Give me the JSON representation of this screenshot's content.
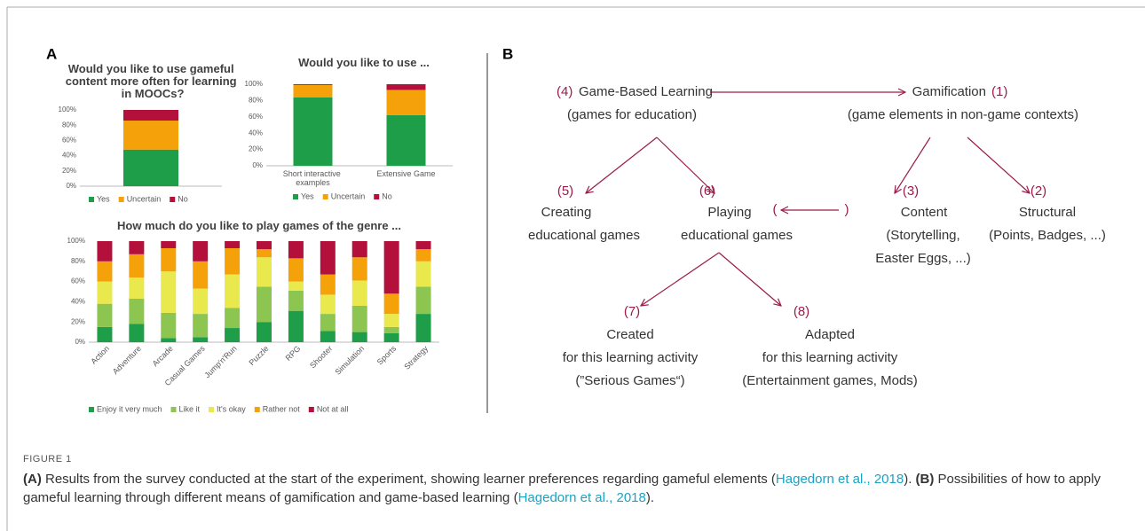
{
  "panel_labels": [
    "A",
    "B"
  ],
  "chart_data": [
    {
      "type": "stacked_bar",
      "title": "Would you like to use gameful content more often for learning in MOOCs?",
      "categories": [
        null
      ],
      "series": [
        {
          "name": "Yes",
          "color": "#1e9e48",
          "values": [
            48
          ]
        },
        {
          "name": "Uncertain",
          "color": "#f5a20a",
          "values": [
            38
          ]
        },
        {
          "name": "No",
          "color": "#b3103c",
          "values": [
            14
          ]
        }
      ],
      "ylim": [
        0,
        100
      ],
      "yticks": [
        {
          "value": 0,
          "label": "0%"
        },
        {
          "value": 20,
          "label": "20%"
        },
        {
          "value": 40,
          "label": "40%"
        },
        {
          "value": 60,
          "label": "60%"
        },
        {
          "value": 80,
          "label": "80%"
        },
        {
          "value": 100,
          "label": "100%"
        }
      ],
      "grid": false
    },
    {
      "type": "stacked_bar",
      "title": "Would you like to use ...",
      "categories": [
        "Short interactive examples",
        "Extensive Game"
      ],
      "series": [
        {
          "name": "Yes",
          "color": "#1e9e48",
          "values": [
            84,
            62
          ]
        },
        {
          "name": "Uncertain",
          "color": "#f5a20a",
          "values": [
            15,
            31
          ]
        },
        {
          "name": "No",
          "color": "#b3103c",
          "values": [
            1,
            7
          ]
        }
      ],
      "ylim": [
        0,
        100
      ],
      "yticks": [
        {
          "value": 0,
          "label": "0%"
        },
        {
          "value": 20,
          "label": "20%"
        },
        {
          "value": 40,
          "label": "40%"
        },
        {
          "value": 60,
          "label": "60%"
        },
        {
          "value": 80,
          "label": "80%"
        },
        {
          "value": 100,
          "label": "100%"
        }
      ],
      "grid": false
    },
    {
      "type": "stacked_bar",
      "title": "How much do you like to play games of the genre ...",
      "categories": [
        "Action",
        "Adventure",
        "Arcade",
        "Casual Games",
        "Jump'n'Run",
        "Puzzle",
        "RPG",
        "Shooter",
        "Simulation",
        "Sports",
        "Strategy"
      ],
      "series": [
        {
          "name": "Enjoy it very much",
          "color": "#1e9e48",
          "values": [
            15,
            18,
            4,
            5,
            14,
            20,
            31,
            11,
            10,
            9,
            28
          ]
        },
        {
          "name": "Like it",
          "color": "#8cc651",
          "values": [
            23,
            25,
            25,
            23,
            20,
            35,
            20,
            17,
            26,
            6,
            27
          ]
        },
        {
          "name": "It's okay",
          "color": "#e9e84c",
          "values": [
            22,
            21,
            41,
            25,
            33,
            29,
            9,
            19,
            25,
            13,
            25
          ]
        },
        {
          "name": "Rather not",
          "color": "#f5a20a",
          "values": [
            20,
            23,
            23,
            27,
            26,
            8,
            23,
            20,
            23,
            20,
            12
          ]
        },
        {
          "name": "Not at all",
          "color": "#b3103c",
          "values": [
            20,
            13,
            7,
            20,
            7,
            8,
            17,
            33,
            16,
            52,
            8
          ]
        }
      ],
      "ylim": [
        0,
        100
      ],
      "yticks": [
        {
          "value": 0,
          "label": "0%"
        },
        {
          "value": 20,
          "label": "20%"
        },
        {
          "value": 40,
          "label": "40%"
        },
        {
          "value": 60,
          "label": "60%"
        },
        {
          "value": 80,
          "label": "80%"
        },
        {
          "value": 100,
          "label": "100%"
        }
      ],
      "grid": false
    }
  ],
  "diagram": {
    "nodes": [
      {
        "number": "(4)",
        "lines": [
          "Game-Based Learning",
          "(games for education)"
        ]
      },
      {
        "number": "(1)",
        "lines": [
          "Gamification",
          "(game elements in non-game contexts)"
        ]
      },
      {
        "number": "(5)",
        "lines": [
          "Creating",
          "educational games"
        ]
      },
      {
        "number": "(6)",
        "lines": [
          "Playing",
          "educational games"
        ]
      },
      {
        "number": "(3)",
        "lines": [
          "Content",
          "(Storytelling,",
          "Easter Eggs, ...)"
        ]
      },
      {
        "number": "(2)",
        "lines": [
          "Structural",
          "(Points, Badges, ...)"
        ]
      },
      {
        "number": "(7)",
        "lines": [
          "Created",
          "for this learning activity",
          "(”Serious Games“)"
        ]
      },
      {
        "number": "(8)",
        "lines": [
          "Adapted",
          "for this learning activity",
          "(Entertainment games, Mods)"
        ]
      }
    ],
    "edge_brackets": [
      "(",
      ")"
    ]
  },
  "caption": {
    "label": "FIGURE 1",
    "a_tag": "(A)",
    "a_text": " Results from the survey conducted at the start of the experiment, showing learner preferences regarding gameful elements (",
    "a_cite": "Hagedorn et al., 2018",
    "a_end": "). ",
    "b_tag": "(B)",
    "b_text": " Possibilities of how to apply gameful learning through different means of gamification and game-based learning (",
    "b_cite": "Hagedorn et al., 2018",
    "b_end": ")."
  }
}
